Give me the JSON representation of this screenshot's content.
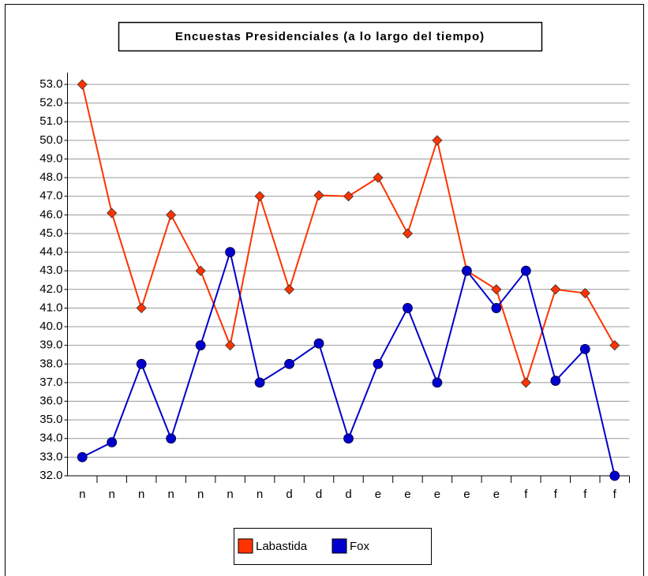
{
  "chart_data": {
    "type": "line",
    "title": "Encuestas Presidenciales (a lo largo del tiempo)",
    "categories": [
      "n",
      "n",
      "n",
      "n",
      "n",
      "n",
      "n",
      "d",
      "d",
      "d",
      "e",
      "e",
      "e",
      "e",
      "e",
      "f",
      "f",
      "f",
      "f"
    ],
    "series": [
      {
        "name": "Labastida",
        "color": "#ff3300",
        "marker": "diamond",
        "values": [
          53,
          46.1,
          41,
          46,
          43,
          39,
          47,
          42,
          47.05,
          47,
          48,
          45,
          50,
          43,
          42,
          37,
          42,
          41.8,
          39
        ]
      },
      {
        "name": "Fox",
        "color": "#0000cc",
        "marker": "circle",
        "values": [
          33,
          33.8,
          38,
          34,
          39,
          44,
          37,
          38,
          39.1,
          34,
          38,
          41,
          37,
          43,
          41,
          43,
          37.1,
          38.8,
          32
        ]
      }
    ],
    "ylim": [
      32,
      53
    ],
    "yticks": [
      {
        "value": 32,
        "label": "32.0"
      },
      {
        "value": 33,
        "label": "33.0"
      },
      {
        "value": 34,
        "label": "34.0"
      },
      {
        "value": 35,
        "label": "35.0"
      },
      {
        "value": 36,
        "label": "36.0"
      },
      {
        "value": 37,
        "label": "37.0"
      },
      {
        "value": 38,
        "label": "38.0"
      },
      {
        "value": 39,
        "label": "39.0"
      },
      {
        "value": 40,
        "label": "40.0"
      },
      {
        "value": 41,
        "label": "41.0"
      },
      {
        "value": 42,
        "label": "42.0"
      },
      {
        "value": 43,
        "label": "43.0"
      },
      {
        "value": 44,
        "label": "44.0"
      },
      {
        "value": 45,
        "label": "45.0"
      },
      {
        "value": 46,
        "label": "46.0"
      },
      {
        "value": 47,
        "label": "47.0"
      },
      {
        "value": 48,
        "label": "48.0"
      },
      {
        "value": 49,
        "label": "49.0"
      },
      {
        "value": 50,
        "label": "50.0"
      },
      {
        "value": 51,
        "label": "51.0"
      },
      {
        "value": 52,
        "label": "52.0"
      },
      {
        "value": 53,
        "label": "53.0"
      }
    ],
    "grid": true,
    "legend": "bottom"
  }
}
